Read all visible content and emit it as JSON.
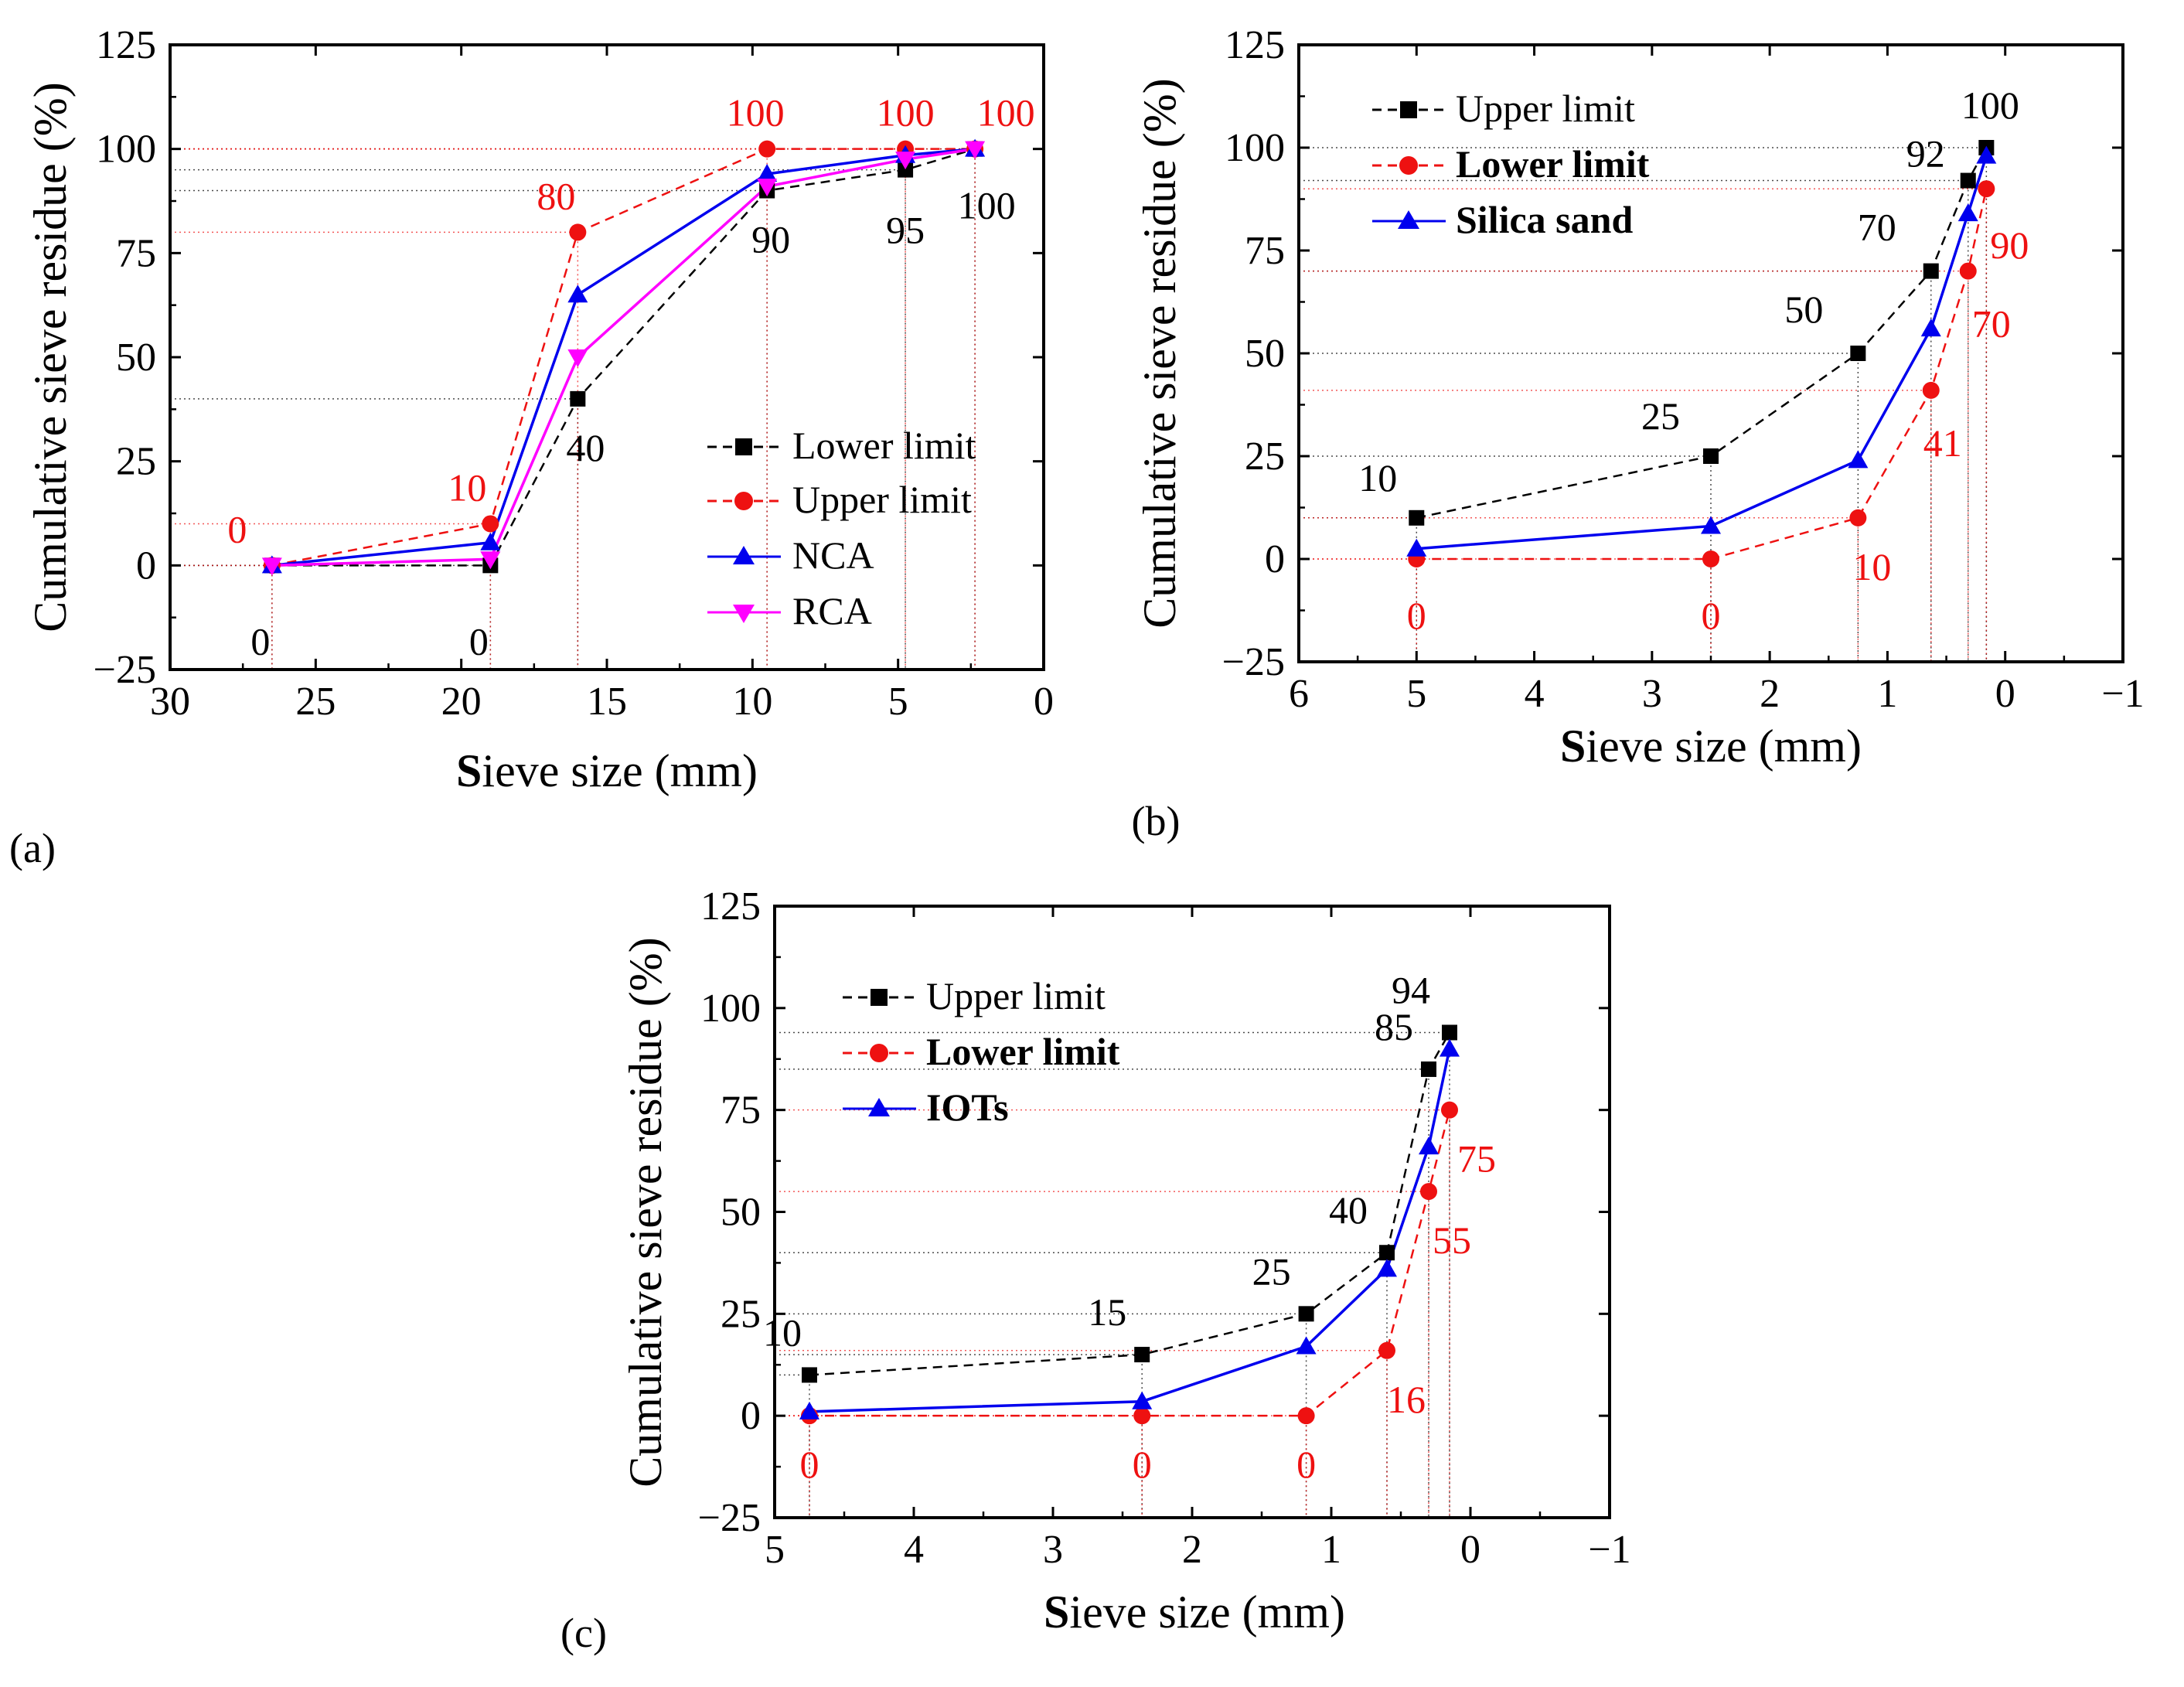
{
  "colors": {
    "upper_a": "#ee1111",
    "lower_a": "#000000",
    "black_series": "#000000",
    "red_series": "#ee1111",
    "blue_series": "#0000ee",
    "magenta_series": "#ff00ff"
  },
  "chart_data": [
    {
      "type": "line",
      "panel": "(a)",
      "xlabel_bold": "S",
      "xlabel_rest": "ieve size (mm)",
      "ylabel": "Cumulative sieve residue (%)",
      "xlim": [
        30,
        0
      ],
      "ylim": [
        -25,
        125
      ],
      "xticks": [
        30,
        25,
        20,
        15,
        10,
        5,
        0
      ],
      "yticks": [
        -25,
        0,
        25,
        50,
        75,
        100,
        125
      ],
      "legend_position": "lower-right",
      "series": [
        {
          "name": "Lower limit",
          "style": "dashed",
          "marker": "square",
          "color": "#000000",
          "x": [
            26.5,
            19,
            16,
            9.5,
            4.75,
            2.36
          ],
          "y": [
            0,
            0,
            40,
            90,
            95,
            100
          ],
          "labels": [
            "0",
            "0",
            "40",
            "90",
            "95",
            "100"
          ]
        },
        {
          "name": "Upper limit",
          "style": "dashed",
          "marker": "circle",
          "color": "#ee1111",
          "x": [
            26.5,
            19,
            16,
            9.5,
            4.75,
            2.36
          ],
          "y": [
            0,
            10,
            80,
            100,
            100,
            100
          ],
          "labels": [
            "0",
            "10",
            "80",
            "100",
            "100",
            "100"
          ]
        },
        {
          "name": "NCA",
          "style": "solid",
          "marker": "triangle-up",
          "color": "#0000ee",
          "x": [
            26.5,
            19,
            16,
            9.5,
            4.75,
            2.36
          ],
          "y": [
            0,
            5.5,
            65,
            94,
            98.5,
            100
          ]
        },
        {
          "name": "RCA",
          "style": "solid",
          "marker": "triangle-down",
          "color": "#ff00ff",
          "x": [
            26.5,
            19,
            16,
            9.5,
            4.75,
            2.36
          ],
          "y": [
            0,
            1.5,
            50,
            91,
            97.5,
            100
          ]
        }
      ]
    },
    {
      "type": "line",
      "panel": "(b)",
      "xlabel_bold": "S",
      "xlabel_rest": "ieve size (mm)",
      "ylabel": "Cumulative sieve residue (%)",
      "xlim": [
        6,
        -1
      ],
      "ylim": [
        -25,
        125
      ],
      "xticks": [
        "6",
        "5",
        "4",
        "3",
        "2",
        "1",
        "0",
        "−1"
      ],
      "yticks": [
        -25,
        0,
        25,
        50,
        75,
        100,
        125
      ],
      "legend_position": "top-left",
      "series": [
        {
          "name": "Upper limit",
          "style": "dashed",
          "marker": "square",
          "color": "#000000",
          "x": [
            5.0,
            2.5,
            1.25,
            0.63,
            0.315,
            0.16
          ],
          "y": [
            10,
            25,
            50,
            70,
            92,
            100
          ],
          "labels": [
            "10",
            "25",
            "50",
            "70",
            "92",
            "100"
          ]
        },
        {
          "name": "Lower limit",
          "style": "dashed",
          "marker": "circle",
          "color": "#ee1111",
          "x": [
            5.0,
            2.5,
            1.25,
            0.63,
            0.315,
            0.16
          ],
          "y": [
            0,
            0,
            10,
            41,
            70,
            90
          ],
          "labels": [
            "0",
            "0",
            "10",
            "41",
            "70",
            "90"
          ]
        },
        {
          "name": "Silica sand",
          "style": "solid",
          "marker": "triangle-up",
          "color": "#0000ee",
          "x": [
            5.0,
            2.5,
            1.25,
            0.63,
            0.315,
            0.16
          ],
          "y": [
            2.5,
            8,
            24,
            56,
            84,
            98
          ]
        }
      ]
    },
    {
      "type": "line",
      "panel": "(c)",
      "xlabel_bold": "S",
      "xlabel_rest": "ieve size (mm)",
      "ylabel": "Cumulative sieve residue (%)",
      "xlim": [
        5,
        -1
      ],
      "ylim": [
        -25,
        125
      ],
      "xticks": [
        "5",
        "4",
        "3",
        "2",
        "1",
        "0",
        "−1"
      ],
      "yticks": [
        -25,
        0,
        25,
        50,
        75,
        100,
        125
      ],
      "legend_position": "top-left",
      "series": [
        {
          "name": "Upper limit",
          "style": "dashed",
          "marker": "square",
          "color": "#000000",
          "x": [
            4.75,
            2.36,
            1.18,
            0.6,
            0.3,
            0.15
          ],
          "y": [
            10,
            15,
            25,
            40,
            85,
            94
          ],
          "labels": [
            "10",
            "15",
            "25",
            "40",
            "85",
            "94"
          ]
        },
        {
          "name": "Lower limit",
          "style": "dashed",
          "marker": "circle",
          "color": "#ee1111",
          "x": [
            4.75,
            2.36,
            1.18,
            0.6,
            0.3,
            0.15
          ],
          "y": [
            0,
            0,
            0,
            16,
            55,
            75
          ],
          "labels": [
            "0",
            "0",
            "0",
            "16",
            "55",
            "75"
          ]
        },
        {
          "name": "IOTs",
          "style": "solid",
          "marker": "triangle-up",
          "color": "#0000ee",
          "x": [
            4.75,
            2.36,
            1.18,
            0.6,
            0.3,
            0.15
          ],
          "y": [
            1,
            3.5,
            17,
            36,
            66,
            90
          ]
        }
      ]
    }
  ]
}
